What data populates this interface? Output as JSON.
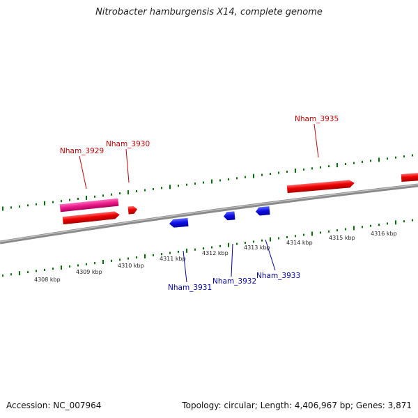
{
  "title": "Nitrobacter hamburgensis X14, complete genome",
  "footer": {
    "accession": "Accession: NC_007964",
    "summary": "Topology: circular; Length: 4,406,967 bp; Genes: 3,871"
  },
  "colors": {
    "forward_gene": "#e00000",
    "forward_highlight": "#e0007a",
    "reverse_gene": "#0000d8",
    "forward_label": "#cc0000",
    "reverse_label": "#0000aa",
    "backbone": "#808080",
    "ticks": "#007700"
  },
  "scale": {
    "unit": "kbp",
    "labels": [
      "4308 kbp",
      "4309 kbp",
      "4310 kbp",
      "4311 kbp",
      "4312 kbp",
      "4313 kbp",
      "4314 kbp",
      "4315 kbp",
      "4316 kbp"
    ]
  },
  "genes": {
    "forward": [
      "Nham_3929",
      "Nham_3930",
      "Nham_3935"
    ],
    "reverse": [
      "Nham_3931",
      "Nham_3932",
      "Nham_3933"
    ]
  }
}
